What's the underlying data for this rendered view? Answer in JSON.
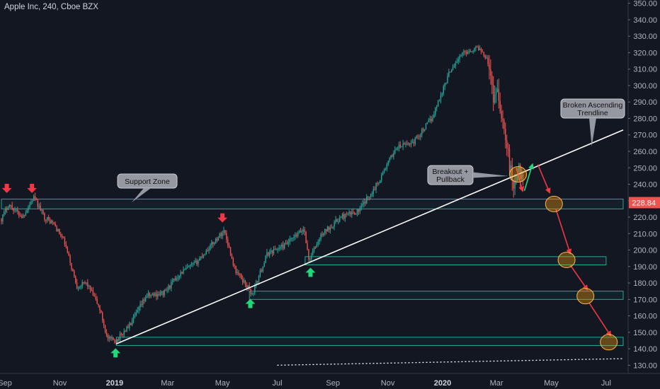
{
  "header": {
    "title": "Apple Inc, 240, Cboe BZX"
  },
  "chart_data": {
    "type": "candlestick",
    "symbol": "Apple Inc",
    "interval": "240",
    "exchange": "Cboe BZX",
    "last_price": "228.84",
    "last_price_value": 228.84,
    "ylim": [
      125,
      352
    ],
    "y_ticks": [
      "130.00",
      "140.00",
      "150.00",
      "160.00",
      "170.00",
      "180.00",
      "190.00",
      "200.00",
      "210.00",
      "220.00",
      "230.00",
      "240.00",
      "250.00",
      "260.00",
      "270.00",
      "280.00",
      "290.00",
      "300.00",
      "310.00",
      "320.00",
      "330.00",
      "340.00",
      "350.00"
    ],
    "x_axis": {
      "start": "2018-08-28",
      "end": "2020-07-20",
      "ticks": [
        {
          "label": "Sep",
          "date": "2018-09-01",
          "major": false
        },
        {
          "label": "Nov",
          "date": "2018-11-01",
          "major": false
        },
        {
          "label": "2019",
          "date": "2019-01-01",
          "major": true
        },
        {
          "label": "Mar",
          "date": "2019-03-01",
          "major": false
        },
        {
          "label": "May",
          "date": "2019-05-01",
          "major": false
        },
        {
          "label": "Jul",
          "date": "2019-07-01",
          "major": false
        },
        {
          "label": "Sep",
          "date": "2019-09-01",
          "major": false
        },
        {
          "label": "Nov",
          "date": "2019-11-01",
          "major": false
        },
        {
          "label": "2020",
          "date": "2020-01-01",
          "major": true
        },
        {
          "label": "Mar",
          "date": "2020-03-01",
          "major": false
        },
        {
          "label": "May",
          "date": "2020-05-01",
          "major": false
        },
        {
          "label": "Jul",
          "date": "2020-07-01",
          "major": false
        }
      ]
    },
    "price_path": [
      {
        "date": "2018-08-28",
        "price": 219
      },
      {
        "date": "2018-09-05",
        "price": 228
      },
      {
        "date": "2018-09-20",
        "price": 220
      },
      {
        "date": "2018-10-03",
        "price": 232
      },
      {
        "date": "2018-10-15",
        "price": 220
      },
      {
        "date": "2018-10-25",
        "price": 216
      },
      {
        "date": "2018-11-06",
        "price": 205
      },
      {
        "date": "2018-11-20",
        "price": 178
      },
      {
        "date": "2018-12-01",
        "price": 180
      },
      {
        "date": "2018-12-15",
        "price": 165
      },
      {
        "date": "2018-12-24",
        "price": 146
      },
      {
        "date": "2019-01-03",
        "price": 145
      },
      {
        "date": "2019-01-20",
        "price": 156
      },
      {
        "date": "2019-02-05",
        "price": 172
      },
      {
        "date": "2019-02-25",
        "price": 174
      },
      {
        "date": "2019-03-15",
        "price": 186
      },
      {
        "date": "2019-04-01",
        "price": 192
      },
      {
        "date": "2019-04-20",
        "price": 204
      },
      {
        "date": "2019-05-03",
        "price": 212
      },
      {
        "date": "2019-05-15",
        "price": 188
      },
      {
        "date": "2019-05-31",
        "price": 176
      },
      {
        "date": "2019-06-03",
        "price": 173
      },
      {
        "date": "2019-06-20",
        "price": 198
      },
      {
        "date": "2019-07-10",
        "price": 203
      },
      {
        "date": "2019-07-31",
        "price": 213
      },
      {
        "date": "2019-08-05",
        "price": 194
      },
      {
        "date": "2019-08-20",
        "price": 210
      },
      {
        "date": "2019-09-10",
        "price": 220
      },
      {
        "date": "2019-09-30",
        "price": 224
      },
      {
        "date": "2019-10-20",
        "price": 240
      },
      {
        "date": "2019-11-10",
        "price": 262
      },
      {
        "date": "2019-11-30",
        "price": 266
      },
      {
        "date": "2019-12-20",
        "price": 280
      },
      {
        "date": "2020-01-10",
        "price": 310
      },
      {
        "date": "2020-01-24",
        "price": 320
      },
      {
        "date": "2020-02-10",
        "price": 323
      },
      {
        "date": "2020-02-21",
        "price": 316
      },
      {
        "date": "2020-02-26",
        "price": 293
      },
      {
        "date": "2020-03-02",
        "price": 298
      },
      {
        "date": "2020-03-09",
        "price": 275
      },
      {
        "date": "2020-03-16",
        "price": 250
      },
      {
        "date": "2020-03-20",
        "price": 240
      },
      {
        "date": "2020-03-26",
        "price": 248
      },
      {
        "date": "2020-03-31",
        "price": 246
      }
    ],
    "zones": [
      {
        "label": "Support Zone",
        "from": "2018-08-28",
        "to": "2020-07-20",
        "low": 225,
        "high": 231,
        "color": "#26a69a"
      },
      {
        "from": "2019-08-01",
        "to": "2020-07-01",
        "low": 191,
        "high": 196,
        "color": "#26a69a"
      },
      {
        "from": "2019-05-31",
        "to": "2020-07-20",
        "low": 170,
        "high": 175,
        "color": "#26a69a"
      },
      {
        "from": "2019-01-03",
        "to": "2020-07-20",
        "low": 142,
        "high": 147,
        "color": "#26a69a"
      }
    ],
    "trendlines": [
      {
        "name": "Broken Ascending Trendline",
        "from": {
          "date": "2019-01-03",
          "price": 143
        },
        "to": {
          "date": "2020-07-20",
          "price": 273
        },
        "color": "#ffffff",
        "style": "solid"
      },
      {
        "from": {
          "date": "2019-07-01",
          "price": 130
        },
        "to": {
          "date": "2020-07-20",
          "price": 134
        },
        "color": "#ffffff",
        "style": "dotted"
      }
    ],
    "callouts": [
      {
        "text": "Support Zone",
        "anchor": {
          "date": "2019-01-20",
          "price": 229
        }
      },
      {
        "text_lines": [
          "Broken Ascending",
          "Trendline"
        ],
        "anchor": {
          "date": "2020-06-15",
          "price": 263
        }
      },
      {
        "text_lines": [
          "Breakout +",
          "Pullback"
        ],
        "anchor": {
          "date": "2020-03-25",
          "price": 245
        }
      }
    ],
    "highlight_circles": [
      {
        "date": "2020-03-25",
        "price": 246
      },
      {
        "date": "2020-05-04",
        "price": 228
      },
      {
        "date": "2020-05-18",
        "price": 194
      },
      {
        "date": "2020-06-08",
        "price": 172
      },
      {
        "date": "2020-07-04",
        "price": 144
      }
    ],
    "projection_arrows": [
      {
        "from": {
          "date": "2020-03-23",
          "price": 250
        },
        "to": {
          "date": "2020-03-30",
          "price": 236
        },
        "color": "#f23645"
      },
      {
        "from": {
          "date": "2020-04-01",
          "price": 236
        },
        "to": {
          "date": "2020-04-10",
          "price": 252
        },
        "color": "#22d67a"
      },
      {
        "from": {
          "date": "2020-04-16",
          "price": 252
        },
        "to": {
          "date": "2020-04-29",
          "price": 235
        },
        "color": "#f23645"
      },
      {
        "from": {
          "date": "2020-05-06",
          "price": 225
        },
        "to": {
          "date": "2020-05-22",
          "price": 198
        },
        "color": "#f23645"
      },
      {
        "from": {
          "date": "2020-05-22",
          "price": 191
        },
        "to": {
          "date": "2020-06-10",
          "price": 176
        },
        "color": "#f23645"
      },
      {
        "from": {
          "date": "2020-06-12",
          "price": 168
        },
        "to": {
          "date": "2020-07-06",
          "price": 148
        },
        "color": "#f23645"
      }
    ],
    "markers": [
      {
        "kind": "down",
        "date": "2018-09-03",
        "price": 236,
        "color": "#f23645"
      },
      {
        "kind": "down",
        "date": "2018-10-01",
        "price": 236,
        "color": "#f23645"
      },
      {
        "kind": "down",
        "date": "2019-05-01",
        "price": 218,
        "color": "#f23645"
      },
      {
        "kind": "up",
        "date": "2019-01-02",
        "price": 139,
        "color": "#22d67a"
      },
      {
        "kind": "up",
        "date": "2019-06-01",
        "price": 169,
        "color": "#22d67a"
      },
      {
        "kind": "up",
        "date": "2019-08-07",
        "price": 188,
        "color": "#22d67a"
      }
    ],
    "colors": {
      "background": "#131722",
      "up_candle": "#26a69a",
      "down_candle": "#ef5350",
      "price_tag": "#ef5350",
      "callout_fill": "#9598a1"
    }
  }
}
